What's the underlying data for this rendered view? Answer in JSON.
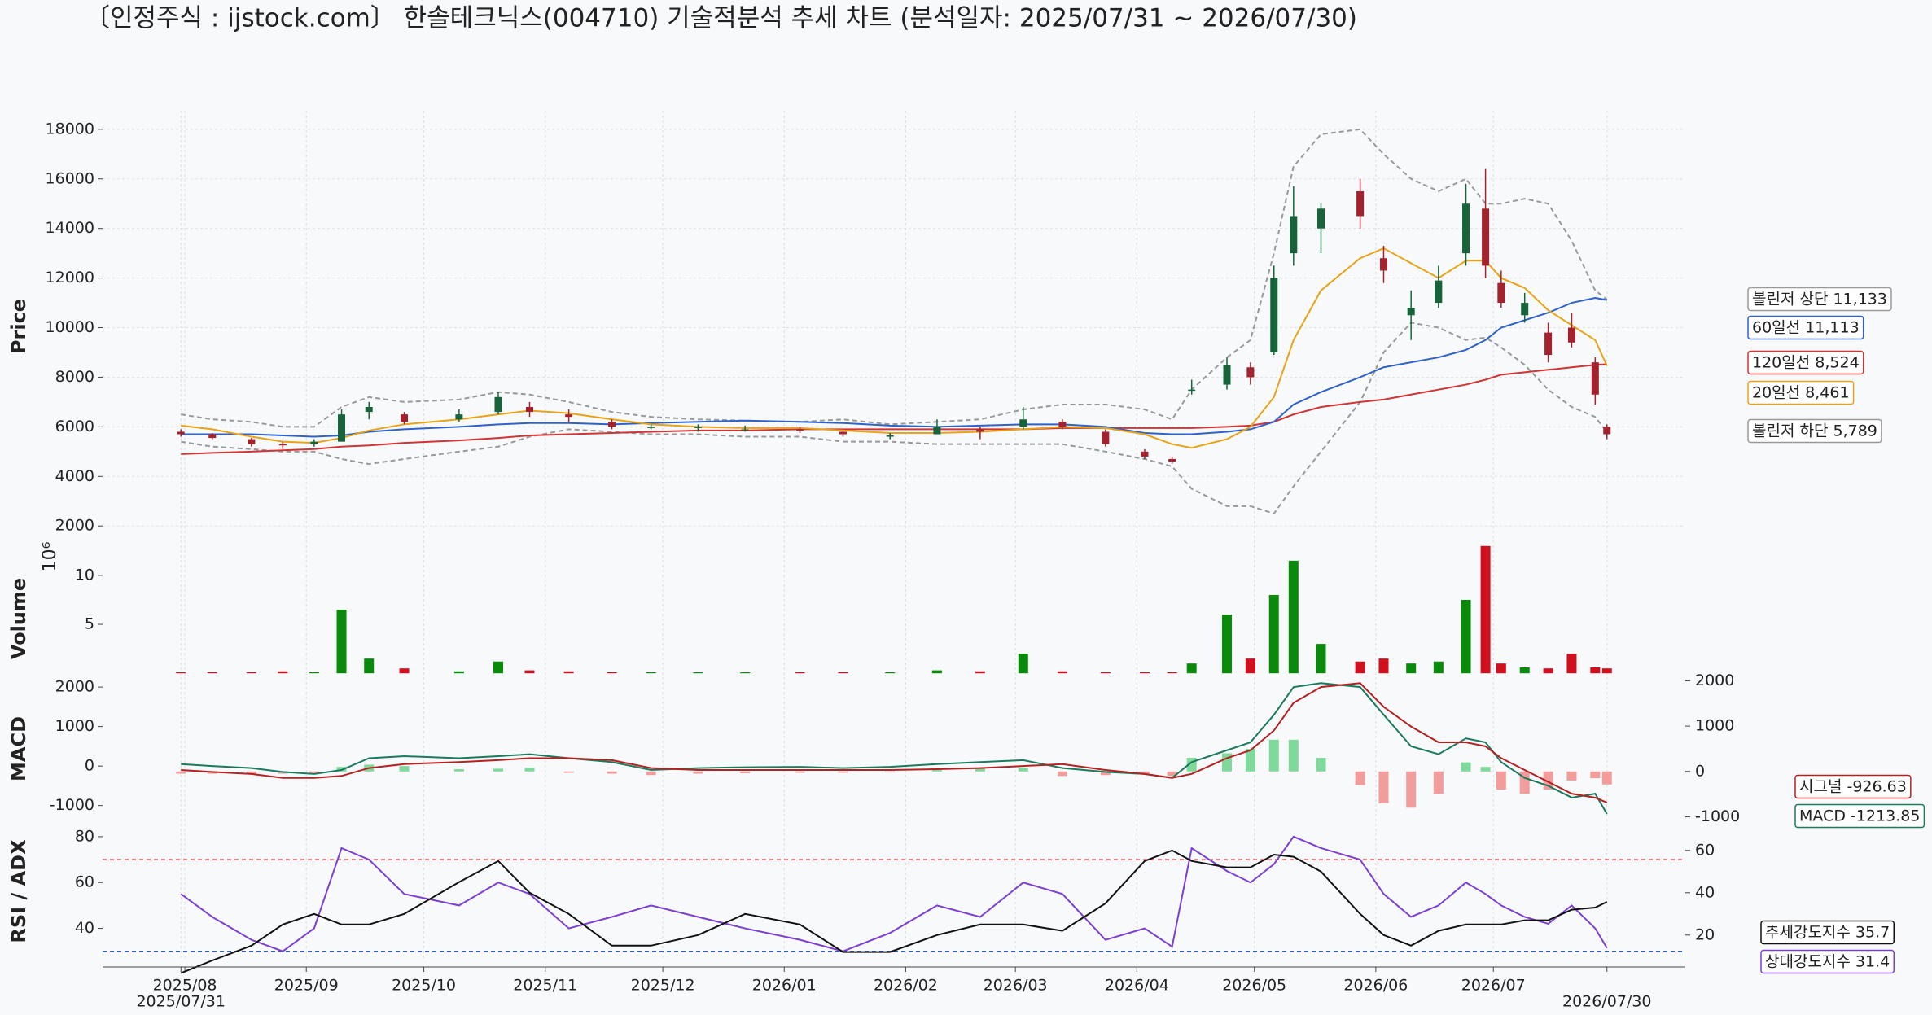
{
  "chart_data": [
    {
      "type": "candlestick",
      "title": "〔인정주식 : ijstock.com〕 한솔테크닉스(004710) 기술적분석 추세 차트 (분석일자: 2025/07/31 ~ 2026/07/30)",
      "ylabel": "Price",
      "x": [
        "2025/07/31",
        "2025/08/08",
        "2025/08/18",
        "2025/08/26",
        "2025/09/03",
        "2025/09/10",
        "2025/09/17",
        "2025/09/26",
        "2025/10/10",
        "2025/10/20",
        "2025/10/28",
        "2025/11/07",
        "2025/11/18",
        "2025/11/28",
        "2025/12/10",
        "2025/12/22",
        "2026/01/05",
        "2026/01/16",
        "2026/01/28",
        "2026/02/09",
        "2026/02/20",
        "2026/03/03",
        "2026/03/13",
        "2026/03/24",
        "2026/04/03",
        "2026/04/10",
        "2026/04/15",
        "2026/04/24",
        "2026/04/30",
        "2026/05/06",
        "2026/05/11",
        "2026/05/18",
        "2026/05/28",
        "2026/06/03",
        "2026/06/10",
        "2026/06/17",
        "2026/06/24",
        "2026/06/29",
        "2026/07/03",
        "2026/07/09",
        "2026/07/15",
        "2026/07/21",
        "2026/07/27",
        "2026/07/30"
      ],
      "open": [
        5800,
        5700,
        5500,
        5300,
        5300,
        5400,
        6600,
        6500,
        6300,
        6600,
        6800,
        6500,
        6200,
        6000,
        5950,
        5900,
        5900,
        5800,
        5600,
        5700,
        5900,
        6000,
        6200,
        5800,
        5000,
        4700,
        7500,
        7700,
        8400,
        9000,
        13000,
        14000,
        15500,
        12800,
        10500,
        11000,
        13000,
        14800,
        11800,
        10500,
        9800,
        10000,
        8600,
        6000
      ],
      "high": [
        5900,
        5750,
        5550,
        5400,
        5500,
        6700,
        7000,
        6600,
        6700,
        7400,
        7000,
        6700,
        6300,
        6100,
        6100,
        6050,
        6000,
        5850,
        5750,
        6300,
        6000,
        6800,
        6300,
        5900,
        5100,
        4800,
        7900,
        8800,
        8600,
        12500,
        15700,
        15000,
        16000,
        13300,
        11500,
        12500,
        15800,
        16400,
        12300,
        11400,
        10200,
        10600,
        8800,
        6100
      ],
      "low": [
        5600,
        5500,
        5200,
        5100,
        5200,
        5400,
        6300,
        6100,
        6200,
        6500,
        6400,
        6200,
        5900,
        5900,
        5800,
        5800,
        5750,
        5600,
        5500,
        5700,
        5500,
        5900,
        5900,
        5200,
        4700,
        4500,
        7300,
        7500,
        7700,
        8900,
        12500,
        13000,
        14000,
        11800,
        9500,
        10800,
        12500,
        12000,
        10800,
        10200,
        8600,
        9200,
        6900,
        5500
      ],
      "close": [
        5700,
        5550,
        5300,
        5250,
        5400,
        6500,
        6800,
        6200,
        6500,
        7200,
        6600,
        6400,
        6000,
        6000,
        6000,
        5900,
        5850,
        5700,
        5650,
        6000,
        5800,
        6300,
        6000,
        5300,
        4800,
        4600,
        7500,
        8500,
        8000,
        12000,
        14500,
        14800,
        14500,
        12300,
        10800,
        11900,
        15000,
        12500,
        11000,
        11000,
        8900,
        9400,
        7300,
        5700
      ],
      "up_color": "#17643a",
      "down_color": "#a3222d",
      "lines": [
        {
          "color": "#999999",
          "dash": true,
          "values": [
            6500,
            6300,
            6200,
            6000,
            6000,
            6800,
            7200,
            7000,
            7100,
            7400,
            7300,
            7000,
            6600,
            6400,
            6300,
            6250,
            6200,
            6300,
            6100,
            6200,
            6300,
            6700,
            6900,
            6900,
            6700,
            6300,
            7500,
            8800,
            9500,
            13000,
            16500,
            17800,
            18000,
            17000,
            16000,
            15500,
            16000,
            15000,
            15000,
            15200,
            15000,
            13500,
            11500,
            11133
          ]
        },
        {
          "color": "#999999",
          "dash": true,
          "values": [
            5400,
            5200,
            5100,
            5000,
            5000,
            4700,
            4500,
            4700,
            5000,
            5200,
            5600,
            5900,
            5800,
            5700,
            5700,
            5600,
            5600,
            5400,
            5400,
            5300,
            5300,
            5300,
            5300,
            5000,
            4700,
            4400,
            3500,
            2800,
            2800,
            2500,
            3600,
            5000,
            7000,
            9000,
            10200,
            10000,
            9500,
            9600,
            9200,
            8500,
            7500,
            6800,
            6400,
            5789
          ]
        },
        {
          "color": "#d13434",
          "dash": false,
          "values": [
            4900,
            4950,
            5000,
            5050,
            5100,
            5200,
            5250,
            5350,
            5450,
            5550,
            5650,
            5700,
            5750,
            5800,
            5850,
            5850,
            5900,
            5900,
            5900,
            5900,
            5900,
            5900,
            5950,
            5950,
            5950,
            5950,
            5950,
            6000,
            6050,
            6200,
            6500,
            6800,
            7000,
            7100,
            7300,
            7500,
            7700,
            7900,
            8100,
            8200,
            8300,
            8400,
            8500,
            8524
          ]
        },
        {
          "color": "#2f62c9",
          "dash": false,
          "values": [
            5700,
            5700,
            5700,
            5650,
            5600,
            5650,
            5800,
            5900,
            6000,
            6100,
            6150,
            6150,
            6100,
            6150,
            6200,
            6250,
            6200,
            6150,
            6050,
            6000,
            6050,
            6100,
            6100,
            6000,
            5750,
            5700,
            5700,
            5800,
            5900,
            6200,
            6900,
            7400,
            8000,
            8400,
            8600,
            8800,
            9100,
            9500,
            10000,
            10300,
            10600,
            11000,
            11200,
            11113
          ]
        },
        {
          "color": "#e8a317",
          "dash": false,
          "values": [
            6050,
            5900,
            5600,
            5400,
            5350,
            5550,
            5850,
            6100,
            6300,
            6500,
            6650,
            6550,
            6300,
            6100,
            6000,
            5950,
            5950,
            5850,
            5750,
            5750,
            5800,
            5900,
            6000,
            5950,
            5700,
            5300,
            5150,
            5500,
            6000,
            7200,
            9500,
            11500,
            12800,
            13200,
            12600,
            12000,
            12700,
            12700,
            12000,
            11600,
            10700,
            10100,
            9500,
            8461
          ]
        }
      ],
      "annotations": [
        {
          "text": "볼린저 상단 11,133",
          "color": "#999999"
        },
        {
          "text": "60일선 11,113",
          "color": "#2f62c9"
        },
        {
          "text": "120일선 8,524",
          "color": "#d13434"
        },
        {
          "text": "20일선 8,461",
          "color": "#e8a317"
        },
        {
          "text": "볼린저 하단 5,789",
          "color": "#999999"
        }
      ],
      "xlim": [
        "2025/07/11",
        "2026/08/19"
      ],
      "xticks": [
        {
          "value": "2025/08/01",
          "label": "2025/08"
        },
        {
          "value": "2025/09/01",
          "label": "2025/09"
        },
        {
          "value": "2025/10/01",
          "label": "2025/10"
        },
        {
          "value": "2025/11/01",
          "label": "2025/11"
        },
        {
          "value": "2025/12/01",
          "label": "2025/12"
        },
        {
          "value": "2026/01/01",
          "label": "2026/01"
        },
        {
          "value": "2026/02/01",
          "label": "2026/02"
        },
        {
          "value": "2026/03/01",
          "label": "2026/03"
        },
        {
          "value": "2026/04/01",
          "label": "2026/04"
        },
        {
          "value": "2026/05/01",
          "label": "2026/05"
        },
        {
          "value": "2026/06/01",
          "label": "2026/06"
        },
        {
          "value": "2026/07/01",
          "label": "2026/07"
        },
        "2025/07/31",
        "2026/07/30"
      ],
      "ylim": [
        1350,
        18750
      ],
      "yticks": [
        2000,
        4000,
        6000,
        8000,
        10000,
        12000,
        14000,
        16000,
        18000
      ],
      "grid": true
    },
    {
      "type": "volume",
      "ylabel": "Volume",
      "scale_label": "10⁶",
      "values": [
        0.1,
        0.1,
        0.1,
        0.2,
        0.1,
        6.5,
        1.5,
        0.5,
        0.2,
        1.2,
        0.3,
        0.2,
        0.1,
        0.1,
        0.1,
        0.1,
        0.1,
        0.1,
        0.1,
        0.3,
        0.2,
        2.0,
        0.2,
        0.1,
        0.1,
        0.1,
        1.0,
        6.0,
        1.5,
        8.0,
        11.5,
        3.0,
        1.2,
        1.5,
        1.0,
        1.2,
        7.5,
        13.0,
        1.0,
        0.6,
        0.5,
        2.0,
        0.6,
        0.5
      ],
      "up_color": "#0a8a0a",
      "down_color": "#d0101e",
      "ylim": [
        -0.4,
        13.4
      ],
      "yticks": [
        5,
        10
      ]
    },
    {
      "type": "macd",
      "ylabel": "MACD",
      "series": [
        {
          "color": "#1a7a5e",
          "values": [
            50,
            0,
            -50,
            -150,
            -200,
            -100,
            200,
            250,
            200,
            250,
            300,
            200,
            100,
            -100,
            -50,
            -30,
            -20,
            -50,
            -20,
            50,
            100,
            150,
            -50,
            -150,
            -200,
            -300,
            100,
            400,
            600,
            1300,
            2000,
            2100,
            2000,
            1300,
            500,
            300,
            700,
            600,
            100,
            -300,
            -500,
            -800,
            -700,
            -1213.85
          ]
        },
        {
          "color": "#b52020",
          "values": [
            -100,
            -150,
            -200,
            -300,
            -300,
            -250,
            -50,
            50,
            100,
            150,
            200,
            200,
            150,
            -50,
            -100,
            -100,
            -100,
            -100,
            -100,
            -80,
            -50,
            0,
            50,
            -100,
            -200,
            -300,
            -200,
            200,
            400,
            900,
            1600,
            2000,
            2100,
            1500,
            1000,
            600,
            600,
            500,
            200,
            -100,
            -400,
            -700,
            -800,
            -926.63
          ]
        }
      ],
      "histogram": {
        "axis": "y2",
        "pos_color": "#7ed99a",
        "neg_color": "#f29c9c",
        "values": [
          -50,
          -50,
          -60,
          -50,
          -30,
          100,
          150,
          120,
          50,
          60,
          80,
          -30,
          -50,
          -80,
          -50,
          -40,
          -30,
          -30,
          -20,
          30,
          60,
          80,
          -100,
          -80,
          -50,
          -100,
          300,
          400,
          500,
          700,
          700,
          300,
          -300,
          -700,
          -800,
          -500,
          200,
          100,
          -400,
          -500,
          -400,
          -200,
          -150,
          -287
        ]
      },
      "annotations": [
        {
          "text": "시그널 -926.63",
          "color": "#b52020"
        },
        {
          "text": "MACD -1213.85",
          "color": "#1a7a5e"
        }
      ],
      "ylim": [
        -1440,
        2250
      ],
      "yticks": [
        -1000,
        0,
        1000,
        2000
      ],
      "y2lim": [
        -1136,
        2080
      ],
      "y2ticks": [
        -1000,
        0,
        1000,
        2000
      ]
    },
    {
      "type": "line",
      "ylabel": "RSI / ADX",
      "series": [
        {
          "color": "#7b3fd4",
          "values": [
            55,
            45,
            35,
            30,
            40,
            75,
            70,
            55,
            50,
            60,
            55,
            40,
            45,
            50,
            45,
            40,
            35,
            30,
            38,
            50,
            45,
            60,
            55,
            35,
            40,
            32,
            75,
            65,
            60,
            68,
            80,
            75,
            70,
            55,
            45,
            50,
            60,
            55,
            50,
            45,
            42,
            50,
            40,
            31.4
          ]
        },
        {
          "color": "#111111",
          "axis": "y2",
          "values": [
            2,
            8,
            15,
            25,
            30,
            25,
            25,
            30,
            45,
            55,
            40,
            30,
            15,
            15,
            20,
            30,
            25,
            12,
            12,
            20,
            25,
            25,
            22,
            35,
            55,
            60,
            55,
            52,
            52,
            58,
            57,
            50,
            30,
            20,
            15,
            22,
            25,
            25,
            25,
            27,
            27,
            32,
            33,
            35.7
          ]
        }
      ],
      "reference_lines": [
        {
          "value": 70,
          "color": "#e04040"
        },
        {
          "value": 30,
          "color": "#3060c0"
        }
      ],
      "annotations": [
        {
          "text": "추세강도지수 35.7",
          "color": "#111111"
        },
        {
          "text": "상대강도지수 31.4",
          "color": "#7b3fd4"
        }
      ],
      "ylim": [
        26,
        86
      ],
      "yticks": [
        40,
        60,
        80
      ],
      "y2lim": [
        8,
        73
      ],
      "y2ticks": [
        20,
        40,
        60
      ]
    }
  ]
}
